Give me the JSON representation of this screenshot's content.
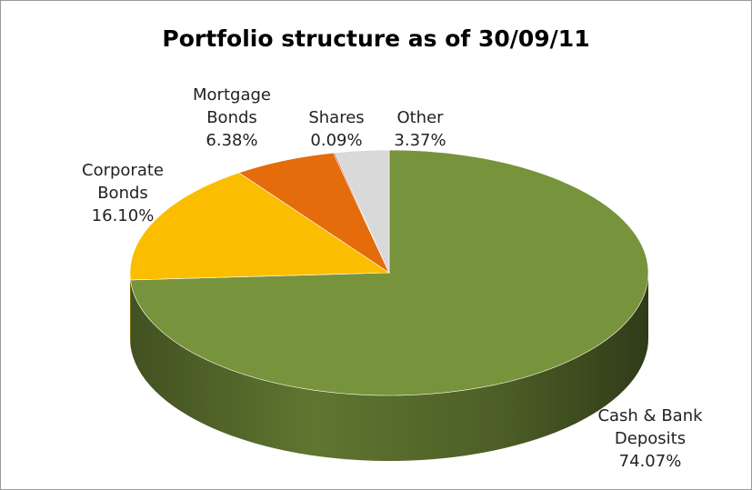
{
  "chart_data": {
    "type": "pie",
    "title": "Portfolio structure as of 30/09/11",
    "categories": [
      "Cash & Bank Deposits",
      "Corporate Bonds",
      "Mortgage Bonds",
      "Shares",
      "Other"
    ],
    "values": [
      74.07,
      16.1,
      6.38,
      0.09,
      3.37
    ],
    "value_labels": [
      "74.07%",
      "16.10%",
      "6.38%",
      "0.09%",
      "3.37%"
    ],
    "colors": [
      "#77933c",
      "#fbbd00",
      "#e46c0a",
      "#c0504d",
      "#d9d9d9"
    ]
  }
}
